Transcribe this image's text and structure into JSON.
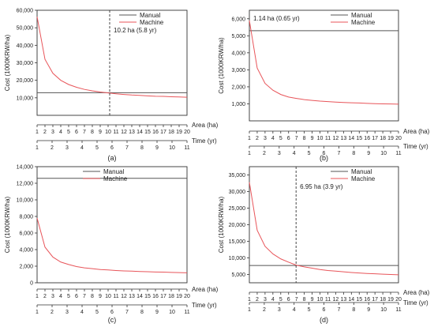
{
  "colors": {
    "manual": "#555555",
    "machine": "#e8555a",
    "axis": "#333333",
    "annotation_line": "#333333"
  },
  "chart_data": [
    {
      "panel_label": "(a)",
      "type": "line",
      "ylabel": "Cost (1000KRW/ha)",
      "xlabel_area": "Area (ha)",
      "xlabel_time": "Time (yr)",
      "x_area_ticks": [
        "1",
        "2",
        "3",
        "4",
        "5",
        "6",
        "7",
        "8",
        "9",
        "10",
        "11",
        "12",
        "13",
        "14",
        "15",
        "16",
        "17",
        "18",
        "19",
        "20"
      ],
      "x_time_ticks": [
        "1",
        "2",
        "3",
        "4",
        "5",
        "6",
        "7",
        "8",
        "9",
        "10",
        "11"
      ],
      "time_per_area": 0.5263,
      "ylim": [
        0,
        60000
      ],
      "yticks": [
        10000,
        20000,
        30000,
        40000,
        50000,
        60000
      ],
      "ytick_labels": [
        "10,000",
        "20,000",
        "30,000",
        "40,000",
        "50,000",
        "60,000"
      ],
      "legend": {
        "position": "top-right",
        "items": [
          "Manual",
          "Machine"
        ]
      },
      "series": [
        {
          "name": "Manual",
          "x": [
            1,
            20
          ],
          "y": [
            12900,
            12900
          ]
        },
        {
          "name": "Machine",
          "x": [
            1,
            2,
            3,
            4,
            5,
            6,
            7,
            8,
            9,
            10,
            11,
            12,
            13,
            14,
            15,
            16,
            17,
            18,
            19,
            20
          ],
          "y": [
            56300,
            32000,
            24000,
            20000,
            17600,
            16000,
            14800,
            14000,
            13300,
            12800,
            12300,
            11900,
            11600,
            11400,
            11100,
            10900,
            10800,
            10600,
            10500,
            10300
          ]
        }
      ],
      "annotation": {
        "text": "10.2 ha (5.8 yr)",
        "x": 10.2
      }
    },
    {
      "panel_label": "(b)",
      "type": "line",
      "ylabel": "Cost (1000KRW/ha)",
      "xlabel_area": "Area (ha)",
      "xlabel_time": "Time (yr)",
      "x_area_ticks": [
        "1",
        "2",
        "3",
        "4",
        "5",
        "6",
        "7",
        "8",
        "9",
        "10",
        "11",
        "12",
        "13",
        "14",
        "15",
        "16",
        "17",
        "18",
        "19",
        "20"
      ],
      "x_time_ticks": [
        "1",
        "2",
        "3",
        "4",
        "5",
        "6",
        "7",
        "8",
        "9",
        "10",
        "11"
      ],
      "time_per_area": 0.5263,
      "ylim": [
        0,
        6500
      ],
      "yticks": [
        1000,
        2000,
        3000,
        4000,
        5000,
        6000
      ],
      "ytick_labels": [
        "1,000",
        "2,000",
        "3,000",
        "4,000",
        "5,000",
        "6,000"
      ],
      "legend": {
        "position": "top-right",
        "items": [
          "Manual",
          "Machine"
        ]
      },
      "series": [
        {
          "name": "Manual",
          "x": [
            1,
            20
          ],
          "y": [
            5300,
            5300
          ]
        },
        {
          "name": "Machine",
          "x": [
            1,
            2,
            3,
            4,
            5,
            6,
            7,
            8,
            9,
            10,
            11,
            12,
            13,
            14,
            15,
            16,
            17,
            18,
            19,
            20
          ],
          "y": [
            5900,
            3100,
            2200,
            1800,
            1550,
            1400,
            1320,
            1250,
            1200,
            1160,
            1130,
            1100,
            1080,
            1060,
            1050,
            1030,
            1010,
            1000,
            990,
            980
          ]
        }
      ],
      "annotation": {
        "text": "1.14 ha (0.65 yr)",
        "x": 1.14
      }
    },
    {
      "panel_label": "(c)",
      "type": "line",
      "ylabel": "Cost (1000KRW/ha)",
      "xlabel_area": "Area (ha)",
      "xlabel_time": "Time (yr)",
      "x_area_ticks": [
        "1",
        "2",
        "3",
        "4",
        "5",
        "6",
        "7",
        "8",
        "9",
        "10",
        "11",
        "12",
        "13",
        "14",
        "15",
        "16",
        "17",
        "18",
        "19",
        "20"
      ],
      "x_time_ticks": [
        "1",
        "2",
        "3",
        "4",
        "5",
        "6",
        "7",
        "8",
        "9",
        "10",
        "11"
      ],
      "time_per_area": 0.5263,
      "ylim": [
        0,
        14000
      ],
      "yticks": [
        0,
        2000,
        4000,
        6000,
        8000,
        10000,
        12000,
        14000
      ],
      "ytick_labels": [
        "0",
        "2,000",
        "4,000",
        "6,000",
        "8,000",
        "10,000",
        "12,000",
        "14,000"
      ],
      "legend": {
        "position": "top-center",
        "items": [
          "Manual",
          "Machine"
        ]
      },
      "series": [
        {
          "name": "Manual",
          "x": [
            1,
            20
          ],
          "y": [
            12600,
            12600
          ]
        },
        {
          "name": "Machine",
          "x": [
            1,
            2,
            3,
            4,
            5,
            6,
            7,
            8,
            9,
            10,
            11,
            12,
            13,
            14,
            15,
            16,
            17,
            18,
            19,
            20
          ],
          "y": [
            7800,
            4300,
            3100,
            2500,
            2200,
            1950,
            1800,
            1700,
            1600,
            1550,
            1480,
            1430,
            1400,
            1360,
            1330,
            1300,
            1280,
            1250,
            1230,
            1200
          ]
        }
      ]
    },
    {
      "panel_label": "(d)",
      "type": "line",
      "ylabel": "Cost (1000KRW/ha)",
      "xlabel_area": "Area (ha)",
      "xlabel_time": "Time (yr)",
      "x_area_ticks": [
        "1",
        "2",
        "3",
        "4",
        "5",
        "6",
        "7",
        "8",
        "9",
        "10",
        "11",
        "12",
        "13",
        "14",
        "15",
        "16",
        "17",
        "18",
        "19",
        "20"
      ],
      "x_time_ticks": [
        "1",
        "2",
        "3",
        "4",
        "5",
        "6",
        "7",
        "8",
        "9",
        "10",
        "11"
      ],
      "time_per_area": 0.5263,
      "ylim": [
        2500,
        37500
      ],
      "yticks": [
        5000,
        10000,
        15000,
        20000,
        25000,
        30000,
        35000
      ],
      "ytick_labels": [
        "5,000",
        "10,000",
        "15,000",
        "20,000",
        "25,000",
        "30,000",
        "35,000"
      ],
      "legend": {
        "position": "top-right",
        "items": [
          "Manual",
          "Machine"
        ]
      },
      "series": [
        {
          "name": "Manual",
          "x": [
            1,
            20
          ],
          "y": [
            7700,
            7700
          ]
        },
        {
          "name": "Machine",
          "x": [
            1,
            2,
            3,
            4,
            5,
            6,
            7,
            8,
            9,
            10,
            11,
            12,
            13,
            14,
            15,
            16,
            17,
            18,
            19,
            20
          ],
          "y": [
            32800,
            18300,
            13500,
            11200,
            9700,
            8700,
            7800,
            7300,
            6900,
            6500,
            6200,
            6000,
            5800,
            5600,
            5450,
            5300,
            5200,
            5100,
            5000,
            4900
          ]
        }
      ],
      "annotation": {
        "text": "6.95 ha (3.9 yr)",
        "x": 6.95
      }
    }
  ]
}
